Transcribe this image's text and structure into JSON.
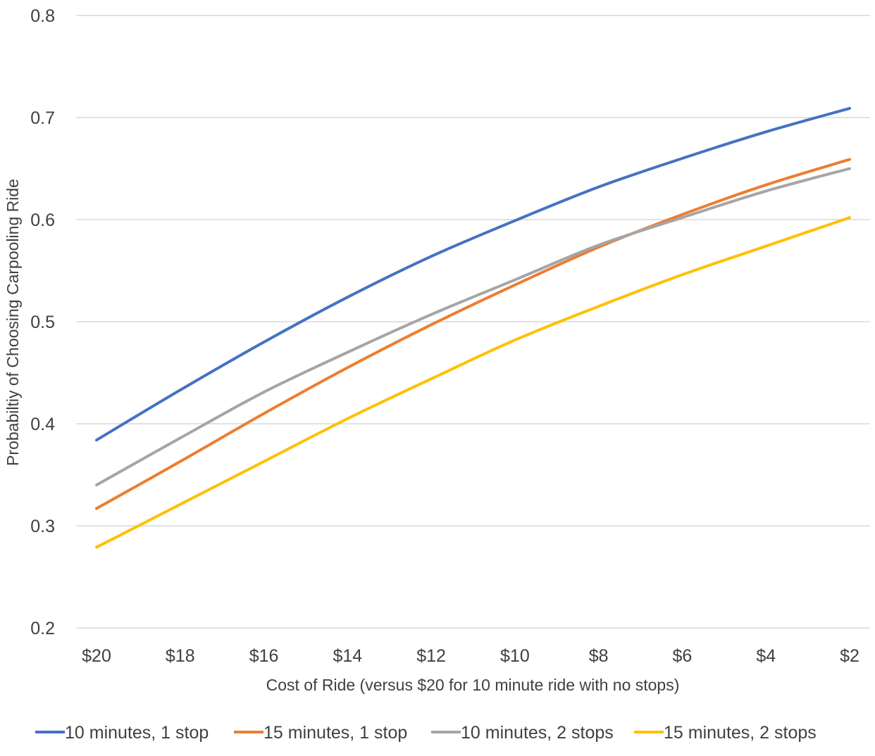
{
  "chart_data": {
    "type": "line",
    "title": "",
    "xlabel": "Cost of Ride (versus $20 for 10 minute ride with no stops)",
    "ylabel": "Probabiltiy of Choosing Carpooling Ride",
    "categories": [
      "$20",
      "$18",
      "$16",
      "$14",
      "$12",
      "$10",
      "$8",
      "$6",
      "$4",
      "$2"
    ],
    "x_values": [
      20,
      18,
      16,
      14,
      12,
      10,
      8,
      6,
      4,
      2
    ],
    "ylim": [
      0.2,
      0.8
    ],
    "yticks": [
      0.2,
      0.3,
      0.4,
      0.5,
      0.6,
      0.7,
      0.8
    ],
    "ytick_labels": [
      "0.2",
      "0.3",
      "0.4",
      "0.5",
      "0.6",
      "0.7",
      "0.8"
    ],
    "grid": "horizontal",
    "legend_position": "bottom",
    "series": [
      {
        "name": "10 minutes, 1 stop",
        "color": "#4472c4",
        "values": [
          0.384,
          0.433,
          0.48,
          0.524,
          0.564,
          0.599,
          0.632,
          0.66,
          0.686,
          0.709
        ]
      },
      {
        "name": "15 minutes, 1 stop",
        "color": "#ed7d31",
        "values": [
          0.317,
          0.363,
          0.41,
          0.455,
          0.497,
          0.536,
          0.573,
          0.605,
          0.634,
          0.659
        ]
      },
      {
        "name": "10 minutes, 2 stops",
        "color": "#a5a5a5",
        "values": [
          0.34,
          0.386,
          0.431,
          0.47,
          0.507,
          0.541,
          0.575,
          0.602,
          0.628,
          0.65
        ]
      },
      {
        "name": "15 minutes, 2 stops",
        "color": "#ffc000",
        "values": [
          0.279,
          0.321,
          0.363,
          0.405,
          0.444,
          0.482,
          0.515,
          0.546,
          0.574,
          0.602
        ]
      }
    ]
  }
}
